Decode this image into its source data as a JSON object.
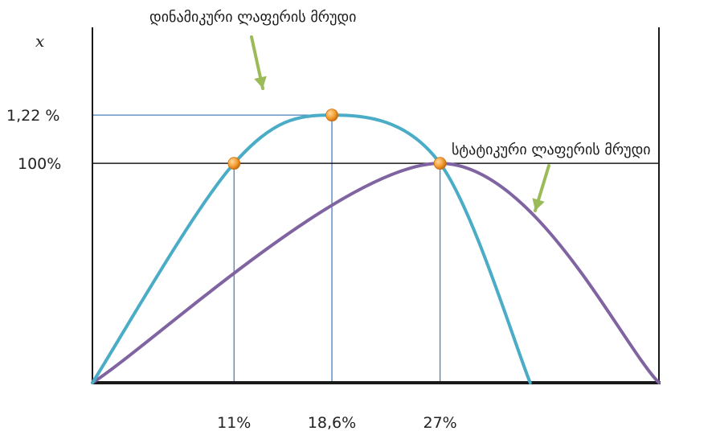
{
  "chart_data": {
    "type": "line",
    "ylabel": "x",
    "x_ticks": [
      "11%",
      "18,6%",
      "27%"
    ],
    "y_ticks": [
      "1,22 %",
      "100%"
    ],
    "y_tick_values": [
      1.22,
      1.0
    ],
    "series": [
      {
        "name": "დინამიკური ლაფერის მრუდი",
        "color": "#4aacc6",
        "x": [
          0,
          11,
          18.6,
          27,
          34
        ],
        "y": [
          0,
          1.0,
          1.22,
          1.0,
          0
        ]
      },
      {
        "name": "სტატიკური ლაფერის მრუდი",
        "color": "#8064a2",
        "x": [
          0,
          27,
          44
        ],
        "y": [
          0,
          1.0,
          0
        ]
      }
    ],
    "points": [
      {
        "x": 11,
        "y": 1.0
      },
      {
        "x": 18.6,
        "y": 1.22
      },
      {
        "x": 27,
        "y": 1.0
      }
    ],
    "xlim": [
      0,
      44
    ],
    "ylim": [
      0,
      1.62
    ],
    "grid": false,
    "point_color": "#f39c2e",
    "arrow_color": "#9bbb59"
  }
}
